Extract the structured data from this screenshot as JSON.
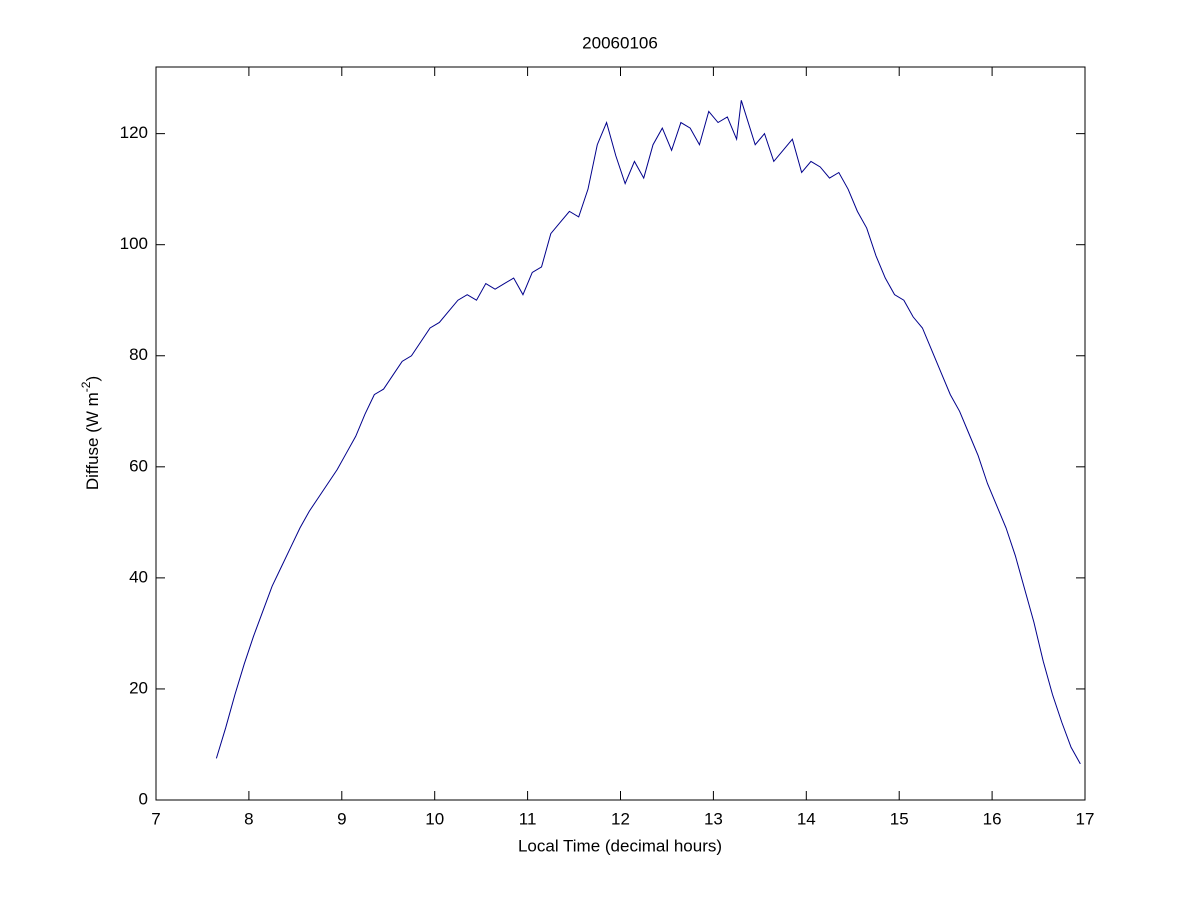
{
  "chart_data": {
    "type": "line",
    "title": "20060106",
    "xlabel": "Local Time (decimal hours)",
    "ylabel": [
      "Diffuse (W m",
      "-2",
      ")"
    ],
    "x": [
      7.65,
      7.75,
      7.85,
      7.95,
      8.05,
      8.15,
      8.25,
      8.35,
      8.45,
      8.55,
      8.65,
      8.75,
      8.85,
      8.95,
      9.05,
      9.15,
      9.25,
      9.35,
      9.45,
      9.55,
      9.65,
      9.75,
      9.85,
      9.95,
      10.05,
      10.15,
      10.25,
      10.35,
      10.45,
      10.55,
      10.65,
      10.75,
      10.85,
      10.95,
      11.05,
      11.15,
      11.25,
      11.35,
      11.45,
      11.55,
      11.65,
      11.75,
      11.85,
      11.95,
      12.05,
      12.15,
      12.25,
      12.35,
      12.45,
      12.55,
      12.65,
      12.75,
      12.85,
      12.95,
      13.05,
      13.15,
      13.25,
      13.3,
      13.45,
      13.55,
      13.65,
      13.75,
      13.85,
      13.95,
      14.05,
      14.15,
      14.25,
      14.35,
      14.45,
      14.55,
      14.65,
      14.75,
      14.85,
      14.95,
      15.05,
      15.15,
      15.25,
      15.35,
      15.45,
      15.55,
      15.65,
      15.75,
      15.85,
      15.95,
      16.05,
      16.15,
      16.25,
      16.35,
      16.45,
      16.55,
      16.65,
      16.75,
      16.85,
      16.95
    ],
    "series": [
      {
        "color": "#00008b",
        "values": [
          7.5,
          13,
          19,
          24.5,
          29.5,
          34,
          38.5,
          42,
          45.5,
          49,
          52,
          54.5,
          57,
          59.5,
          62.5,
          65.5,
          69.5,
          73,
          74,
          76.5,
          79,
          80,
          82.5,
          85,
          86,
          88,
          90,
          91,
          90,
          93,
          92,
          93,
          94,
          91,
          95,
          96,
          102,
          104,
          106,
          105,
          110,
          118,
          122,
          116,
          111,
          115,
          112,
          118,
          121,
          117,
          122,
          121,
          118,
          124,
          122,
          123,
          119,
          126,
          118,
          120,
          115,
          117,
          119,
          113,
          115,
          114,
          112,
          113,
          110,
          106,
          103,
          98,
          94,
          91,
          90,
          87,
          85,
          81,
          77,
          73,
          70,
          66,
          62,
          57,
          53,
          49,
          44,
          38,
          32,
          25,
          19,
          14,
          9.5,
          6.5
        ]
      }
    ],
    "xlim": [
      7,
      17
    ],
    "xticks": [
      7,
      8,
      9,
      10,
      11,
      12,
      13,
      14,
      15,
      16,
      17
    ],
    "ylim": [
      0,
      132
    ],
    "yticks": [
      0,
      20,
      40,
      60,
      80,
      100,
      120
    ],
    "grid": false
  }
}
